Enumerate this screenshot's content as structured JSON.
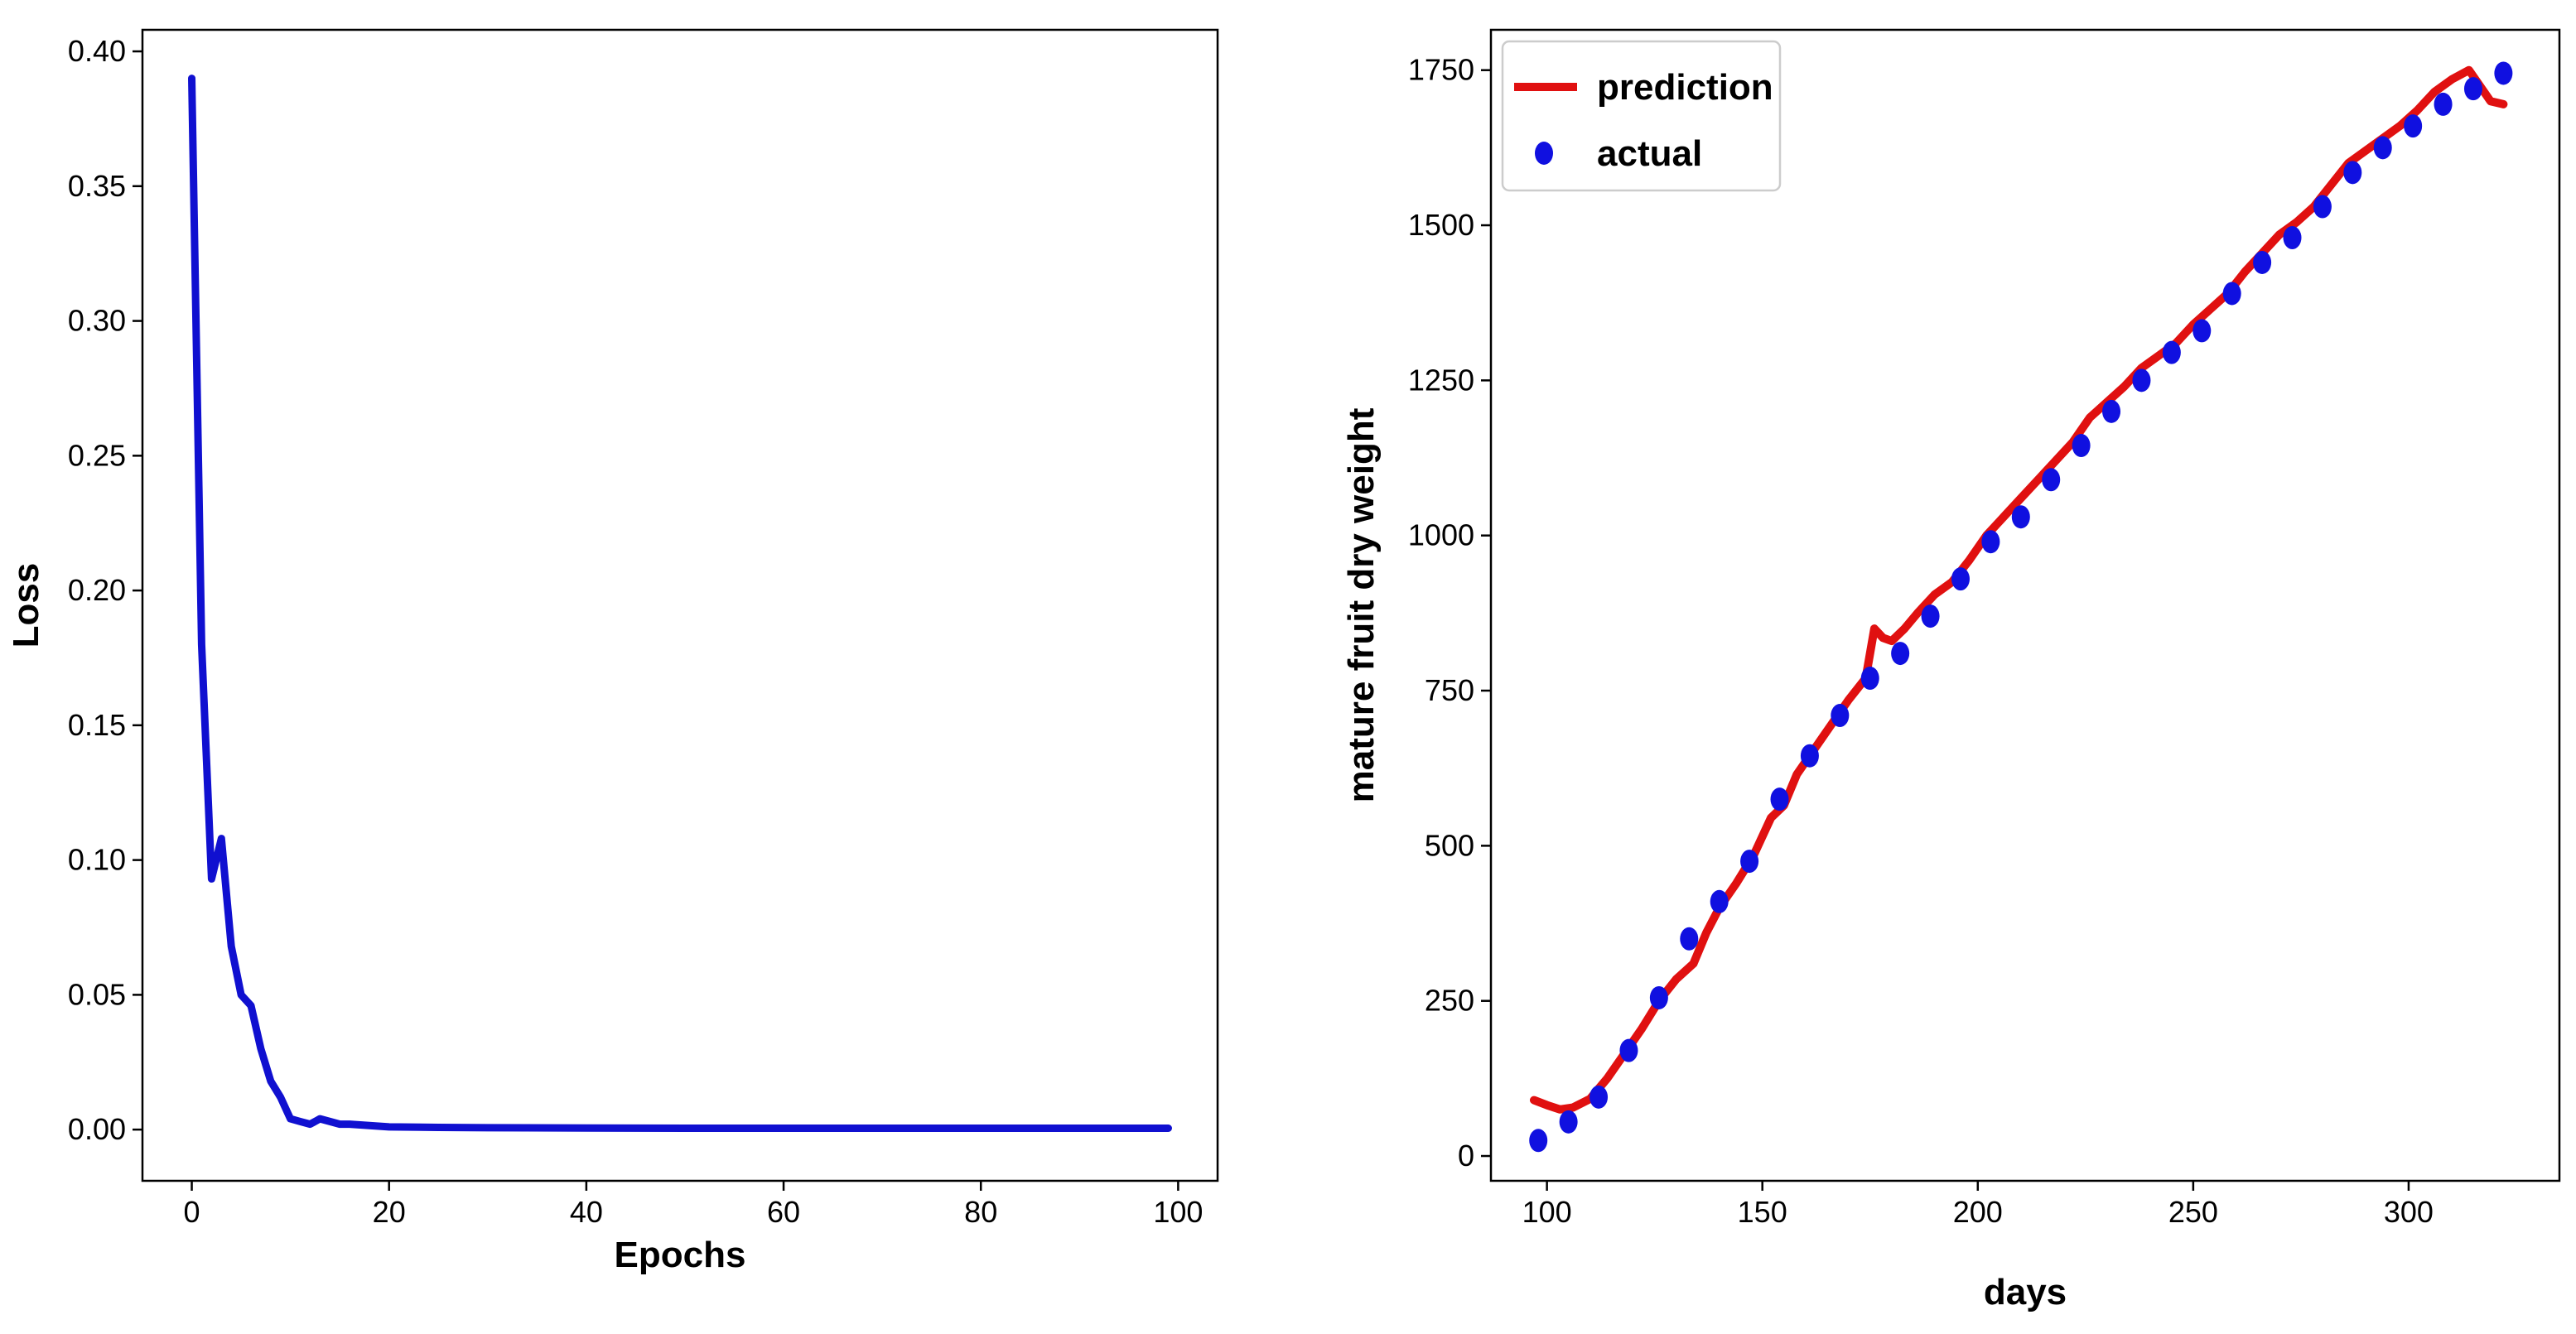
{
  "chart_data": [
    {
      "type": "line",
      "xlabel": "Epochs",
      "ylabel": "Loss",
      "xlim": [
        -5,
        104
      ],
      "ylim": [
        -0.019,
        0.408
      ],
      "xticks": [
        0,
        20,
        40,
        60,
        80,
        100
      ],
      "yticks": [
        0.0,
        0.05,
        0.1,
        0.15,
        0.2,
        0.25,
        0.3,
        0.35,
        0.4
      ],
      "ytick_labels": [
        "0.00",
        "0.05",
        "0.10",
        "0.15",
        "0.20",
        "0.25",
        "0.30",
        "0.35",
        "0.40"
      ],
      "grid": false,
      "series": [
        {
          "color": "#1010d0",
          "x": [
            0,
            1,
            2,
            3,
            4,
            5,
            6,
            7,
            8,
            9,
            10,
            11,
            12,
            13,
            14,
            15,
            16,
            18,
            20,
            25,
            30,
            40,
            50,
            60,
            70,
            80,
            90,
            99
          ],
          "y": [
            0.39,
            0.18,
            0.093,
            0.108,
            0.068,
            0.05,
            0.046,
            0.03,
            0.018,
            0.012,
            0.004,
            0.003,
            0.002,
            0.004,
            0.003,
            0.002,
            0.002,
            0.0015,
            0.001,
            0.0008,
            0.0007,
            0.0006,
            0.0005,
            0.0005,
            0.0005,
            0.0005,
            0.0005,
            0.0005
          ]
        }
      ]
    },
    {
      "type": "line",
      "xlabel": "days",
      "ylabel": "mature fruit dry weight",
      "xlim": [
        87,
        335
      ],
      "ylim": [
        -40,
        1815
      ],
      "xticks": [
        100,
        150,
        200,
        250,
        300
      ],
      "yticks": [
        0,
        250,
        500,
        750,
        1000,
        1250,
        1500,
        1750
      ],
      "grid": false,
      "legend": "top-left",
      "series": [
        {
          "name": "prediction",
          "color": "#e01010",
          "x": [
            97,
            100,
            103,
            106,
            110,
            114,
            118,
            122,
            126,
            130,
            134,
            137,
            140,
            144,
            148,
            152,
            155,
            158,
            162,
            166,
            170,
            174,
            176,
            178,
            180,
            183,
            186,
            190,
            194,
            198,
            202,
            206,
            210,
            214,
            218,
            222,
            226,
            230,
            234,
            238,
            242,
            246,
            250,
            254,
            258,
            262,
            266,
            270,
            274,
            278,
            282,
            286,
            290,
            294,
            298,
            302,
            306,
            310,
            314,
            317,
            319,
            322
          ],
          "y": [
            90,
            82,
            75,
            78,
            92,
            125,
            165,
            205,
            250,
            285,
            310,
            360,
            400,
            440,
            485,
            545,
            565,
            615,
            655,
            695,
            735,
            770,
            850,
            835,
            830,
            850,
            875,
            905,
            925,
            960,
            1000,
            1030,
            1060,
            1090,
            1120,
            1150,
            1190,
            1215,
            1240,
            1270,
            1290,
            1310,
            1340,
            1365,
            1390,
            1425,
            1455,
            1485,
            1505,
            1530,
            1565,
            1600,
            1620,
            1640,
            1660,
            1685,
            1715,
            1735,
            1750,
            1720,
            1700,
            1695
          ]
        },
        {
          "name": "actual",
          "color": "#1010e0",
          "x": [
            98,
            105,
            112,
            119,
            126,
            133,
            140,
            147,
            154,
            161,
            168,
            175,
            182,
            189,
            196,
            203,
            210,
            217,
            224,
            231,
            238,
            245,
            252,
            259,
            266,
            273,
            280,
            287,
            294,
            301,
            308,
            315,
            322
          ],
          "y": [
            25,
            55,
            95,
            170,
            255,
            350,
            410,
            475,
            575,
            645,
            710,
            770,
            810,
            870,
            930,
            990,
            1030,
            1090,
            1145,
            1200,
            1250,
            1295,
            1330,
            1390,
            1440,
            1480,
            1530,
            1585,
            1625,
            1660,
            1695,
            1720,
            1745
          ]
        }
      ]
    }
  ]
}
